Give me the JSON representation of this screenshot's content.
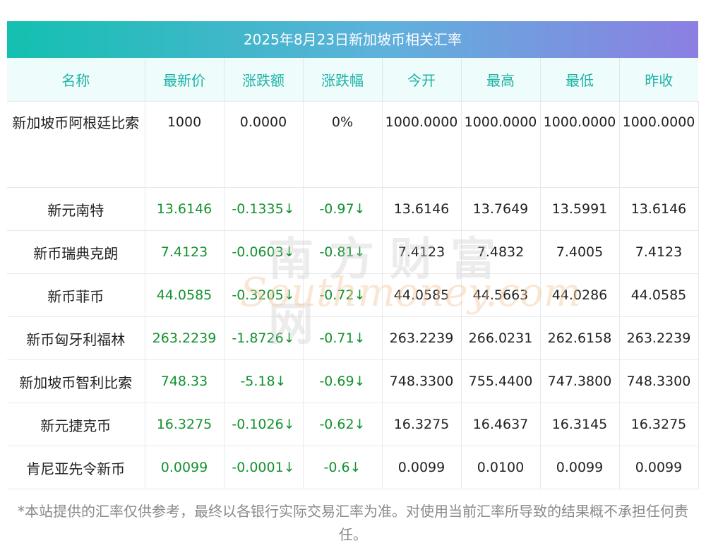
{
  "title": "2025年8月23日新加坡币相关汇率",
  "headers": [
    "名称",
    "最新价",
    "涨跌额",
    "涨跌幅",
    "今开",
    "最高",
    "最低",
    "昨收"
  ],
  "rows": [
    {
      "name": "新加坡币阿根廷比索",
      "latest": "1000",
      "change": "0.0000",
      "pct": "0%",
      "open": "1000.0000",
      "high": "1000.0000",
      "low": "1000.0000",
      "prev": "1000.0000"
    },
    {
      "name": "新元南特",
      "latest": "13.6146",
      "change": "-0.1335↓",
      "pct": "-0.97↓",
      "open": "13.6146",
      "high": "13.7649",
      "low": "13.5991",
      "prev": "13.6146"
    },
    {
      "name": "新币瑞典克朗",
      "latest": "7.4123",
      "change": "-0.0603↓",
      "pct": "-0.81↓",
      "open": "7.4123",
      "high": "7.4832",
      "low": "7.4005",
      "prev": "7.4123"
    },
    {
      "name": "新币菲币",
      "latest": "44.0585",
      "change": "-0.3205↓",
      "pct": "-0.72↓",
      "open": "44.0585",
      "high": "44.5663",
      "low": "44.0286",
      "prev": "44.0585"
    },
    {
      "name": "新币匈牙利福林",
      "latest": "263.2239",
      "change": "-1.8726↓",
      "pct": "-0.71↓",
      "open": "263.2239",
      "high": "266.0231",
      "low": "262.6158",
      "prev": "263.2239"
    },
    {
      "name": "新加坡币智利比索",
      "latest": "748.33",
      "change": "-5.18↓",
      "pct": "-0.69↓",
      "open": "748.3300",
      "high": "755.4400",
      "low": "747.3800",
      "prev": "748.3300"
    },
    {
      "name": "新元捷克币",
      "latest": "16.3275",
      "change": "-0.1026↓",
      "pct": "-0.62↓",
      "open": "16.3275",
      "high": "16.4637",
      "low": "16.3145",
      "prev": "16.3275"
    },
    {
      "name": "肯尼亚先令新币",
      "latest": "0.0099",
      "change": "-0.0001↓",
      "pct": "-0.6↓",
      "open": "0.0099",
      "high": "0.0100",
      "low": "0.0099",
      "prev": "0.0099"
    }
  ],
  "watermark": {
    "cn": "南方财富网",
    "en": "Southmoney.com"
  },
  "footer": "*本站提供的汇率仅供参考，最终以各银行实际交易汇率为准。对使用当前汇率所导致的结果概不承担任何责任。",
  "colors": {
    "header_text": "#1eb3a6",
    "down": "#12922e",
    "title_gradient": [
      "#13c0b0",
      "#8c7fe2"
    ]
  }
}
